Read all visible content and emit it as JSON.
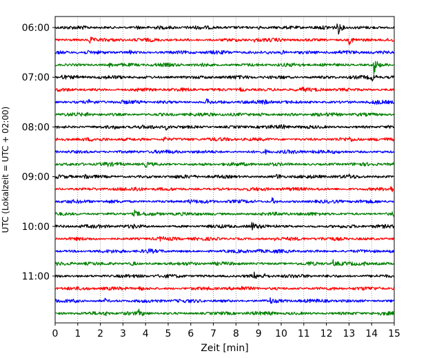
{
  "chart_data": {
    "type": "line",
    "subtype": "helicorder",
    "xlabel": "Zeit  [min]",
    "ylabel": "UTC (Lokalzeit = UTC + 02:00)",
    "xlim": [
      0,
      15
    ],
    "x_ticks": [
      0,
      1,
      2,
      3,
      4,
      5,
      6,
      7,
      8,
      9,
      10,
      11,
      12,
      13,
      14,
      15
    ],
    "x_tick_labels": [
      "0",
      "1",
      "2",
      "3",
      "4",
      "5",
      "6",
      "7",
      "8",
      "9",
      "10",
      "11",
      "12",
      "13",
      "14",
      "15"
    ],
    "grid": "vertical dotted at each minute",
    "trace_interval_min": 15,
    "trace_start": "06:00",
    "trace_colors": [
      "#000000",
      "#ff0000",
      "#0000ff",
      "#008000"
    ],
    "y_tick_labels": [
      "06:00",
      "07:00",
      "08:00",
      "09:00",
      "10:00",
      "11:00"
    ],
    "traces": [
      {
        "start": "06:00",
        "events": [
          [
            12.5,
            3.2
          ],
          [
            9.0,
            0.9
          ],
          [
            3.6,
            0.8
          ],
          [
            1.1,
            0.6
          ]
        ]
      },
      {
        "start": "06:15",
        "events": [
          [
            1.5,
            2.0
          ],
          [
            13.0,
            1.9
          ],
          [
            0.4,
            0.7
          ],
          [
            8.8,
            0.6
          ]
        ]
      },
      {
        "start": "06:30",
        "events": [
          [
            10.0,
            1.1
          ],
          [
            9.4,
            0.7
          ],
          [
            3.3,
            0.6
          ]
        ]
      },
      {
        "start": "06:45",
        "events": [
          [
            14.1,
            4.0
          ],
          [
            2.4,
            0.8
          ],
          [
            6.5,
            0.6
          ]
        ]
      },
      {
        "start": "07:00",
        "events": [
          [
            14.0,
            1.4
          ],
          [
            0.3,
            0.8
          ],
          [
            10.0,
            0.6
          ]
        ]
      },
      {
        "start": "07:15",
        "events": [
          [
            8.2,
            1.2
          ],
          [
            3.5,
            0.8
          ],
          [
            10.9,
            0.7
          ]
        ]
      },
      {
        "start": "07:30",
        "events": [
          [
            6.7,
            1.3
          ],
          [
            9.2,
            0.9
          ],
          [
            14.1,
            0.8
          ],
          [
            1.5,
            0.6
          ]
        ]
      },
      {
        "start": "07:45",
        "events": [
          [
            9.0,
            1.0
          ],
          [
            1.4,
            0.8
          ],
          [
            7.4,
            0.6
          ]
        ]
      },
      {
        "start": "08:00",
        "events": [
          [
            4.9,
            1.1
          ],
          [
            10.0,
            0.9
          ],
          [
            2.6,
            0.6
          ]
        ]
      },
      {
        "start": "08:15",
        "events": [
          [
            4.8,
            1.4
          ],
          [
            13.0,
            0.6
          ]
        ]
      },
      {
        "start": "08:30",
        "events": [
          [
            11.4,
            0.9
          ],
          [
            9.3,
            0.8
          ]
        ]
      },
      {
        "start": "08:45",
        "events": [
          [
            4.0,
            0.9
          ],
          [
            2.2,
            0.8
          ]
        ]
      },
      {
        "start": "09:00",
        "events": [
          [
            9.8,
            1.9
          ],
          [
            1.3,
            1.4
          ],
          [
            13.0,
            0.6
          ]
        ]
      },
      {
        "start": "09:15",
        "events": [
          [
            14.8,
            1.6
          ],
          [
            3.5,
            0.9
          ],
          [
            11.6,
            0.6
          ]
        ]
      },
      {
        "start": "09:30",
        "events": [
          [
            9.6,
            1.3
          ],
          [
            5.9,
            0.7
          ]
        ]
      },
      {
        "start": "09:45",
        "events": [
          [
            14.9,
            1.6
          ],
          [
            3.5,
            1.4
          ],
          [
            6.8,
            0.6
          ]
        ]
      },
      {
        "start": "10:00",
        "events": [
          [
            8.7,
            1.5
          ],
          [
            3.4,
            0.7
          ],
          [
            9.7,
            0.6
          ]
        ]
      },
      {
        "start": "10:15",
        "events": [
          [
            9.7,
            0.9
          ],
          [
            4.6,
            0.7
          ]
        ]
      },
      {
        "start": "10:30",
        "events": [
          [
            8.9,
            1.2
          ],
          [
            4.1,
            0.8
          ]
        ]
      },
      {
        "start": "10:45",
        "events": [
          [
            12.3,
            1.3
          ],
          [
            13.6,
            1.1
          ],
          [
            3.4,
            1.1
          ],
          [
            11.2,
            0.7
          ]
        ]
      },
      {
        "start": "11:00",
        "events": [
          [
            8.8,
            1.3
          ],
          [
            9.2,
            0.8
          ]
        ]
      },
      {
        "start": "11:15",
        "events": [
          [
            3.7,
            1.3
          ],
          [
            8.2,
            0.6
          ]
        ]
      },
      {
        "start": "11:30",
        "events": [
          [
            9.5,
            1.2
          ],
          [
            2.2,
            0.9
          ],
          [
            0.8,
            0.6
          ]
        ]
      },
      {
        "start": "11:45",
        "events": [
          [
            3.7,
            1.3
          ],
          [
            2.2,
            0.8
          ],
          [
            9.4,
            0.6
          ]
        ]
      }
    ]
  }
}
